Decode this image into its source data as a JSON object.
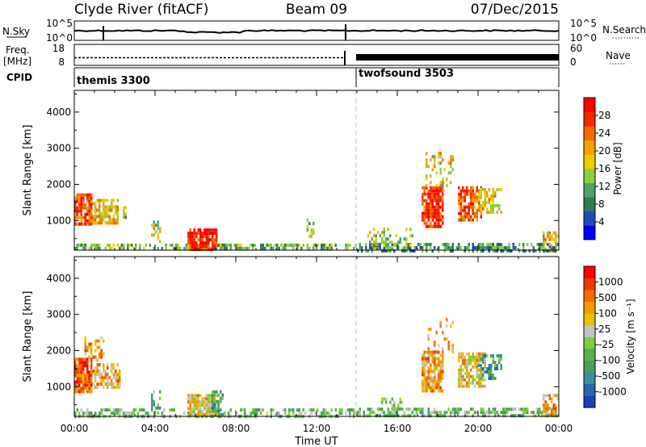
{
  "header": {
    "station": "Clyde River (fitACF)",
    "beam": "Beam 09",
    "date": "07/Dec/2015"
  },
  "noise_panel": {
    "left_label": "N.Sky",
    "right_label": "N.Search",
    "left_ticks": [
      "10^5",
      "10^0"
    ],
    "right_ticks": [
      "10^5",
      "10^0"
    ]
  },
  "freq_panel": {
    "left_label_1": "Freq.",
    "left_label_2": "[MHz]",
    "right_label": "Nave",
    "left_ticks": [
      "18",
      "8"
    ],
    "right_ticks": [
      "60",
      "0"
    ]
  },
  "cpid_panel": {
    "label": "CPID",
    "modes": [
      {
        "name": "themis 3300",
        "start_hour": 0
      },
      {
        "name": "twofsound 3503",
        "start_hour": 14
      }
    ]
  },
  "x_axis": {
    "label": "Time UT",
    "ticks": [
      "00:00",
      "04:00",
      "08:00",
      "12:00",
      "16:00",
      "20:00",
      "00:00"
    ],
    "range_hours": [
      0,
      24
    ],
    "mode_change_hour": 14
  },
  "y_axis": {
    "label": "Slant Range [km]",
    "ticks": [
      "1000",
      "2000",
      "3000",
      "4000"
    ],
    "range_km": [
      180,
      4600
    ]
  },
  "power_colorbar": {
    "label": "Power [dB]",
    "ticks": [
      "4",
      "8",
      "12",
      "16",
      "20",
      "24",
      "28"
    ],
    "colors": [
      "#0000ff",
      "#1e4cb4",
      "#337a52",
      "#4fa36a",
      "#8ccf3c",
      "#eecb00",
      "#f7a000",
      "#f26a00",
      "#ee2a00",
      "#ff0000"
    ]
  },
  "velocity_colorbar": {
    "label": "Velocity [m s⁻¹]",
    "ticks": [
      "1000",
      "500",
      "100",
      "25",
      "-25",
      "-100",
      "-500",
      "-1000"
    ],
    "colors": [
      "#1d3fb8",
      "#2a65ad",
      "#3b8ea0",
      "#4c9c5c",
      "#56b24c",
      "#7ccf3c",
      "#c4c4c4",
      "#e8c000",
      "#f39a00",
      "#f06e00",
      "#ed3c00",
      "#ff0000"
    ]
  },
  "chart_data": {
    "type": "heatmap",
    "x_unit": "hour UT",
    "y_unit": "km",
    "power_patches": [
      {
        "t0": 0.0,
        "t1": 0.9,
        "r0": 900,
        "r1": 1750,
        "level": 0.82,
        "density": 0.85
      },
      {
        "t0": 0.9,
        "t1": 2.2,
        "r0": 950,
        "r1": 1600,
        "level": 0.6,
        "density": 0.75
      },
      {
        "t0": 2.3,
        "t1": 2.6,
        "r0": 1100,
        "r1": 1400,
        "level": 0.45,
        "density": 0.6
      },
      {
        "t0": 0.0,
        "t1": 14.0,
        "r0": 200,
        "r1": 360,
        "level": 0.38,
        "density": 0.55
      },
      {
        "t0": 5.6,
        "t1": 7.1,
        "r0": 230,
        "r1": 780,
        "level": 0.9,
        "density": 0.85
      },
      {
        "t0": 3.8,
        "t1": 4.3,
        "r0": 450,
        "r1": 1000,
        "level": 0.5,
        "density": 0.45
      },
      {
        "t0": 11.5,
        "t1": 11.9,
        "r0": 550,
        "r1": 1050,
        "level": 0.4,
        "density": 0.3
      },
      {
        "t0": 14.0,
        "t1": 24.0,
        "r0": 200,
        "r1": 380,
        "level": 0.3,
        "density": 0.6
      },
      {
        "t0": 14.5,
        "t1": 16.8,
        "r0": 250,
        "r1": 800,
        "level": 0.45,
        "density": 0.35
      },
      {
        "t0": 17.2,
        "t1": 18.3,
        "r0": 850,
        "r1": 1950,
        "level": 0.85,
        "density": 0.8
      },
      {
        "t0": 17.4,
        "t1": 18.8,
        "r0": 1950,
        "r1": 2900,
        "level": 0.55,
        "density": 0.28
      },
      {
        "t0": 19.0,
        "t1": 20.2,
        "r0": 1000,
        "r1": 1950,
        "level": 0.75,
        "density": 0.75
      },
      {
        "t0": 20.0,
        "t1": 21.2,
        "r0": 1200,
        "r1": 1900,
        "level": 0.55,
        "density": 0.6
      },
      {
        "t0": 23.2,
        "t1": 24.0,
        "r0": 230,
        "r1": 700,
        "level": 0.55,
        "density": 0.55
      }
    ],
    "velocity_patches": [
      {
        "t0": 0.0,
        "t1": 0.9,
        "r0": 900,
        "r1": 1800,
        "level": 0.82,
        "density": 0.85
      },
      {
        "t0": 0.9,
        "t1": 2.3,
        "r0": 950,
        "r1": 1650,
        "level": 0.68,
        "density": 0.7
      },
      {
        "t0": 0.5,
        "t1": 1.5,
        "r0": 1700,
        "r1": 2400,
        "level": 0.72,
        "density": 0.35
      },
      {
        "t0": 0.0,
        "t1": 14.0,
        "r0": 200,
        "r1": 400,
        "level": 0.42,
        "density": 0.5
      },
      {
        "t0": 5.6,
        "t1": 7.1,
        "r0": 230,
        "r1": 800,
        "level": 0.6,
        "density": 0.8
      },
      {
        "t0": 6.8,
        "t1": 7.4,
        "r0": 200,
        "r1": 900,
        "level": 0.3,
        "density": 0.5
      },
      {
        "t0": 3.8,
        "t1": 4.3,
        "r0": 400,
        "r1": 900,
        "level": 0.35,
        "density": 0.4
      },
      {
        "t0": 14.0,
        "t1": 24.0,
        "r0": 200,
        "r1": 420,
        "level": 0.4,
        "density": 0.55
      },
      {
        "t0": 15.2,
        "t1": 16.3,
        "r0": 350,
        "r1": 700,
        "level": 0.46,
        "density": 0.35
      },
      {
        "t0": 17.2,
        "t1": 18.3,
        "r0": 850,
        "r1": 2000,
        "level": 0.7,
        "density": 0.8
      },
      {
        "t0": 17.4,
        "t1": 18.8,
        "r0": 2000,
        "r1": 2900,
        "level": 0.68,
        "density": 0.28
      },
      {
        "t0": 19.0,
        "t1": 20.4,
        "r0": 1000,
        "r1": 1950,
        "level": 0.6,
        "density": 0.75
      },
      {
        "t0": 20.0,
        "t1": 21.2,
        "r0": 1200,
        "r1": 1900,
        "level": 0.3,
        "density": 0.6
      },
      {
        "t0": 23.2,
        "t1": 24.0,
        "r0": 230,
        "r1": 800,
        "level": 0.7,
        "density": 0.55
      }
    ]
  }
}
